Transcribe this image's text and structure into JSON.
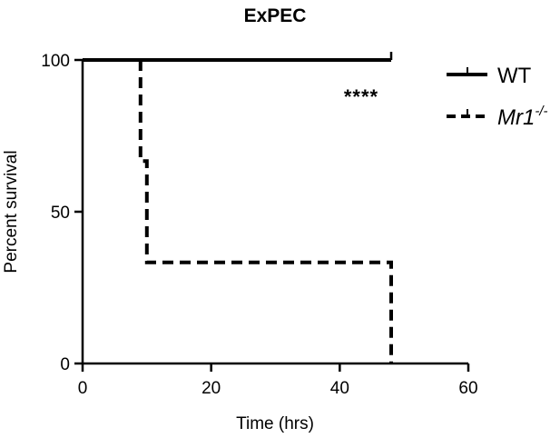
{
  "chart_data": {
    "type": "line",
    "subtype": "kaplan-meier survival",
    "title": "ExPEC",
    "xlabel": "Time (hrs)",
    "ylabel": "Percent survival",
    "xlim": [
      0,
      60
    ],
    "ylim": [
      0,
      100
    ],
    "xticks": [
      "0",
      "20",
      "40",
      "60"
    ],
    "yticks": [
      "0",
      "50",
      "100"
    ],
    "grid": false,
    "legend_position": "right",
    "series": [
      {
        "name": "WT",
        "style": "solid",
        "color": "#000000",
        "points": [
          [
            0,
            100
          ],
          [
            48,
            100
          ]
        ],
        "censored": [
          [
            48,
            100
          ]
        ]
      },
      {
        "name": "Mr1",
        "name_superscript": "-/-",
        "style": "dashed",
        "color": "#000000",
        "points": [
          [
            9,
            100
          ],
          [
            9,
            66.7
          ],
          [
            10,
            66.7
          ],
          [
            10,
            33.3
          ],
          [
            48,
            33.3
          ],
          [
            48,
            0
          ]
        ],
        "censored": []
      }
    ],
    "annotations": [
      {
        "text": "****"
      }
    ]
  }
}
